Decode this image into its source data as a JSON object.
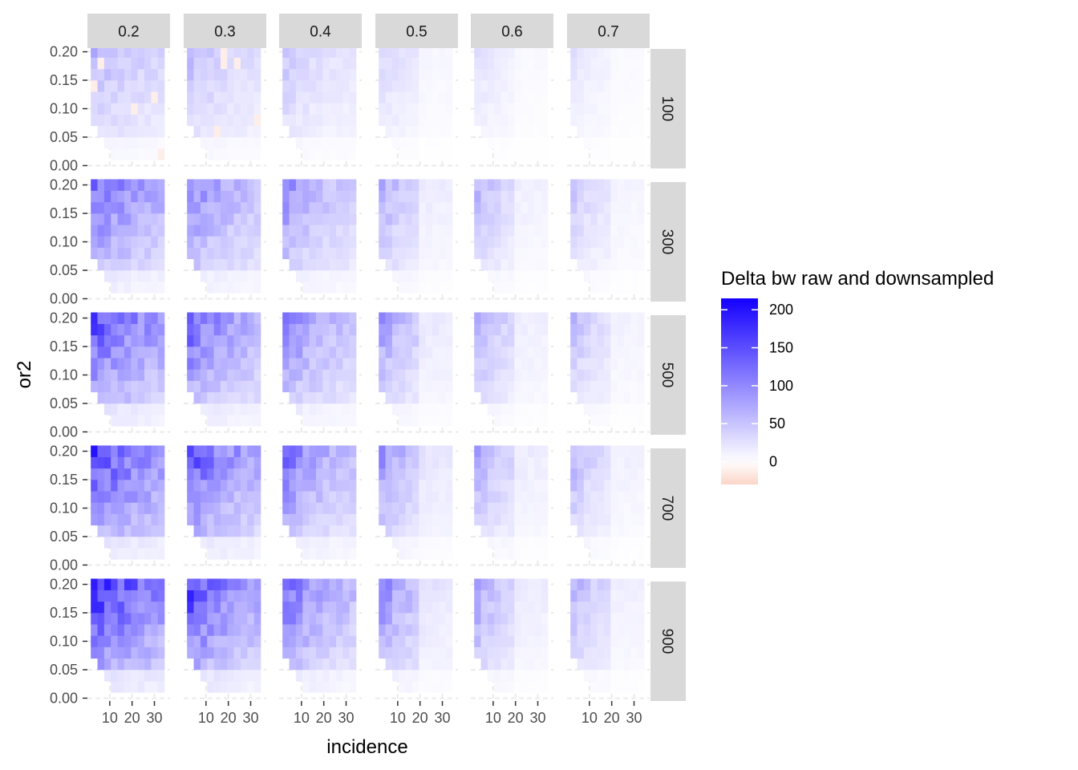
{
  "chart_data": {
    "type": "heatmap",
    "xlabel": "incidence",
    "ylabel": "or2",
    "col_facets": [
      "0.2",
      "0.3",
      "0.4",
      "0.5",
      "0.6",
      "0.7"
    ],
    "row_facets": [
      "100",
      "300",
      "500",
      "700",
      "900"
    ],
    "x_ticks": [
      10,
      20,
      30
    ],
    "x_tick_labels": [
      "10",
      "20",
      "30"
    ],
    "x_range": [
      0,
      37
    ],
    "x_cell_centers": [
      3,
      6,
      9,
      12,
      15,
      18,
      21,
      24,
      27,
      30,
      33
    ],
    "y_ticks": [
      0.0,
      0.05,
      0.1,
      0.15,
      0.2
    ],
    "y_tick_labels": [
      "0.00",
      "0.05",
      "0.10",
      "0.15",
      "0.20"
    ],
    "y_range": [
      -0.005,
      0.205
    ],
    "y_cell_centers": [
      0.02,
      0.04,
      0.06,
      0.08,
      0.1,
      0.12,
      0.14,
      0.16,
      0.18,
      0.2
    ],
    "legend": {
      "title": "Delta bw raw and downsampled",
      "ticks": [
        0,
        50,
        100,
        150,
        200
      ],
      "tick_labels": [
        "0",
        "50",
        "100",
        "150",
        "200"
      ],
      "range": [
        -30,
        215
      ],
      "low_color": "#fbd5c8",
      "mid_color": "#ffffff",
      "high_color": "#1400ff"
    },
    "panel_background": "#ffffff",
    "grid_color": "#ebebeb",
    "strip_background": "#d9d9d9",
    "facet_peak_values": [
      [
        70,
        65,
        55,
        40,
        30,
        28
      ],
      [
        140,
        120,
        110,
        80,
        70,
        55
      ],
      [
        165,
        150,
        130,
        95,
        80,
        65
      ],
      [
        180,
        170,
        140,
        105,
        85,
        70
      ],
      [
        200,
        185,
        150,
        115,
        90,
        75
      ]
    ],
    "grid": true,
    "legend_position": "right"
  }
}
